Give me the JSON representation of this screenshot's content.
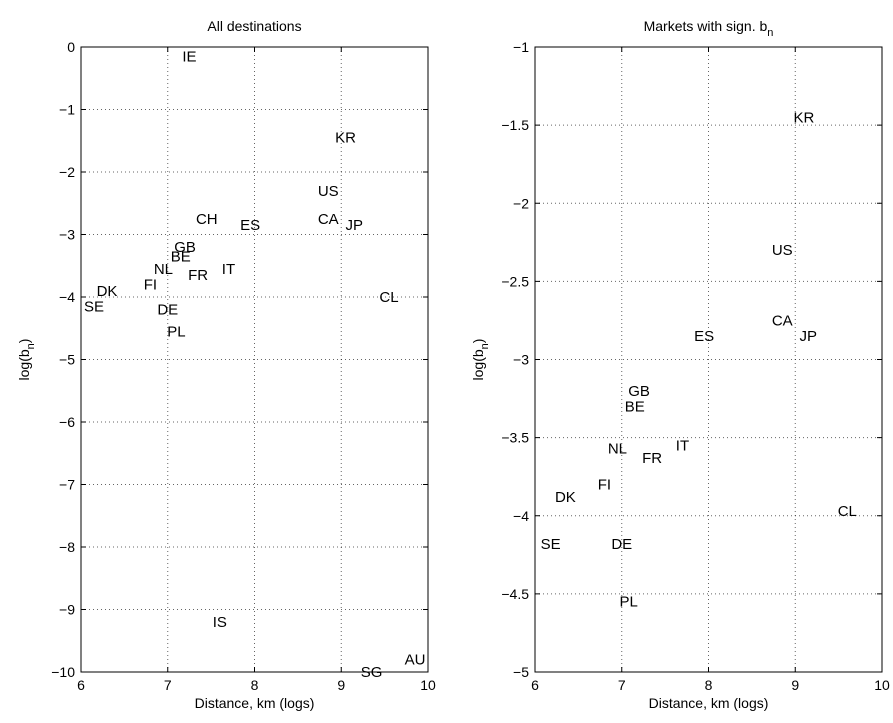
{
  "chart_data": [
    {
      "type": "scatter",
      "title": "All destinations",
      "xlabel": "Distance, km (logs)",
      "ylabel": "log(b_n)",
      "xlim": [
        6,
        10
      ],
      "ylim": [
        -10,
        0
      ],
      "xticks": [
        "6",
        "7",
        "8",
        "9",
        "10"
      ],
      "yticks": [
        "0",
        "−1",
        "−2",
        "−3",
        "−4",
        "−5",
        "−6",
        "−7",
        "−8",
        "−9",
        "−10"
      ],
      "xtick_values": [
        6,
        7,
        8,
        9,
        10
      ],
      "ytick_values": [
        0,
        -1,
        -2,
        -3,
        -4,
        -5,
        -6,
        -7,
        -8,
        -9,
        -10
      ],
      "grid": true,
      "points": [
        {
          "label": "IE",
          "x": 7.25,
          "y": -0.15
        },
        {
          "label": "KR",
          "x": 9.05,
          "y": -1.45
        },
        {
          "label": "US",
          "x": 8.85,
          "y": -2.3
        },
        {
          "label": "CH",
          "x": 7.45,
          "y": -2.75
        },
        {
          "label": "ES",
          "x": 7.95,
          "y": -2.85
        },
        {
          "label": "CA",
          "x": 8.85,
          "y": -2.75
        },
        {
          "label": "JP",
          "x": 9.15,
          "y": -2.85
        },
        {
          "label": "GB",
          "x": 7.2,
          "y": -3.2
        },
        {
          "label": "BE",
          "x": 7.15,
          "y": -3.35
        },
        {
          "label": "NL",
          "x": 6.95,
          "y": -3.55
        },
        {
          "label": "IT",
          "x": 7.7,
          "y": -3.55
        },
        {
          "label": "FR",
          "x": 7.35,
          "y": -3.65
        },
        {
          "label": "FI",
          "x": 6.8,
          "y": -3.8
        },
        {
          "label": "DK",
          "x": 6.3,
          "y": -3.9
        },
        {
          "label": "CL",
          "x": 9.55,
          "y": -4.0
        },
        {
          "label": "SE",
          "x": 6.15,
          "y": -4.15
        },
        {
          "label": "DE",
          "x": 7.0,
          "y": -4.2
        },
        {
          "label": "PL",
          "x": 7.1,
          "y": -4.55
        },
        {
          "label": "IS",
          "x": 7.6,
          "y": -9.2
        },
        {
          "label": "AU",
          "x": 9.85,
          "y": -9.8
        },
        {
          "label": "SG",
          "x": 9.35,
          "y": -10.0
        }
      ]
    },
    {
      "type": "scatter",
      "title": "Markets with sign. b",
      "title_subscript": "n",
      "xlabel": "Distance, km (logs)",
      "ylabel": "log(b_n)",
      "xlim": [
        6,
        10
      ],
      "ylim": [
        -5,
        -1
      ],
      "xticks": [
        "6",
        "7",
        "8",
        "9",
        "10"
      ],
      "yticks": [
        "−1",
        "−1.5",
        "−2",
        "−2.5",
        "−3",
        "−3.5",
        "−4",
        "−4.5",
        "−5"
      ],
      "xtick_values": [
        6,
        7,
        8,
        9,
        10
      ],
      "ytick_values": [
        -1,
        -1.5,
        -2,
        -2.5,
        -3,
        -3.5,
        -4,
        -4.5,
        -5
      ],
      "grid": true,
      "points": [
        {
          "label": "KR",
          "x": 9.1,
          "y": -1.45
        },
        {
          "label": "US",
          "x": 8.85,
          "y": -2.3
        },
        {
          "label": "CA",
          "x": 8.85,
          "y": -2.75
        },
        {
          "label": "JP",
          "x": 9.15,
          "y": -2.85
        },
        {
          "label": "ES",
          "x": 7.95,
          "y": -2.85
        },
        {
          "label": "GB",
          "x": 7.2,
          "y": -3.2
        },
        {
          "label": "BE",
          "x": 7.15,
          "y": -3.3
        },
        {
          "label": "IT",
          "x": 7.7,
          "y": -3.55
        },
        {
          "label": "NL",
          "x": 6.95,
          "y": -3.57
        },
        {
          "label": "FR",
          "x": 7.35,
          "y": -3.63
        },
        {
          "label": "FI",
          "x": 6.8,
          "y": -3.8
        },
        {
          "label": "DK",
          "x": 6.35,
          "y": -3.88
        },
        {
          "label": "CL",
          "x": 9.6,
          "y": -3.97
        },
        {
          "label": "SE",
          "x": 6.18,
          "y": -4.18
        },
        {
          "label": "DE",
          "x": 7.0,
          "y": -4.18
        },
        {
          "label": "PL",
          "x": 7.08,
          "y": -4.55
        }
      ]
    }
  ]
}
